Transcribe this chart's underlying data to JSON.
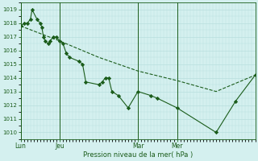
{
  "title": "",
  "xlabel": "Pression niveau de la mer( hPa )",
  "background_color": "#d4f0ef",
  "grid_color": "#b8dedd",
  "line_color": "#1a5c1a",
  "ylim": [
    1009.5,
    1019.5
  ],
  "yticks": [
    1010,
    1011,
    1012,
    1013,
    1014,
    1015,
    1016,
    1017,
    1018,
    1019
  ],
  "xlim": [
    0,
    72
  ],
  "xtick_positions": [
    0,
    12,
    36,
    48
  ],
  "xtick_labels": [
    "Lun",
    "Jeu",
    "Mar",
    "Mer"
  ],
  "vline_positions": [
    0,
    12,
    36,
    48
  ],
  "line1_x": [
    0,
    1,
    2,
    3,
    3.5,
    5,
    6,
    6.5,
    7,
    7.5,
    8.5,
    9,
    10,
    11,
    12,
    13,
    14,
    15,
    18,
    19,
    20,
    24,
    25,
    26,
    27,
    28,
    30,
    33,
    36,
    40,
    42,
    48,
    60,
    66,
    72
  ],
  "line1_y": [
    1017.8,
    1018.0,
    1018.0,
    1018.3,
    1019.0,
    1018.3,
    1018.0,
    1017.7,
    1017.0,
    1016.7,
    1016.5,
    1016.7,
    1017.0,
    1017.0,
    1016.7,
    1016.5,
    1015.8,
    1015.5,
    1015.2,
    1015.0,
    1013.7,
    1013.5,
    1013.7,
    1014.0,
    1014.0,
    1013.0,
    1012.7,
    1011.8,
    1013.0,
    1012.7,
    1012.5,
    1011.8,
    1010.0,
    1012.3,
    1014.2
  ],
  "line2_x": [
    0,
    12,
    24,
    36,
    48,
    60,
    72
  ],
  "line2_y": [
    1017.8,
    1016.7,
    1015.5,
    1014.5,
    1013.8,
    1013.0,
    1014.2
  ],
  "figsize": [
    3.2,
    2.0
  ],
  "dpi": 100
}
